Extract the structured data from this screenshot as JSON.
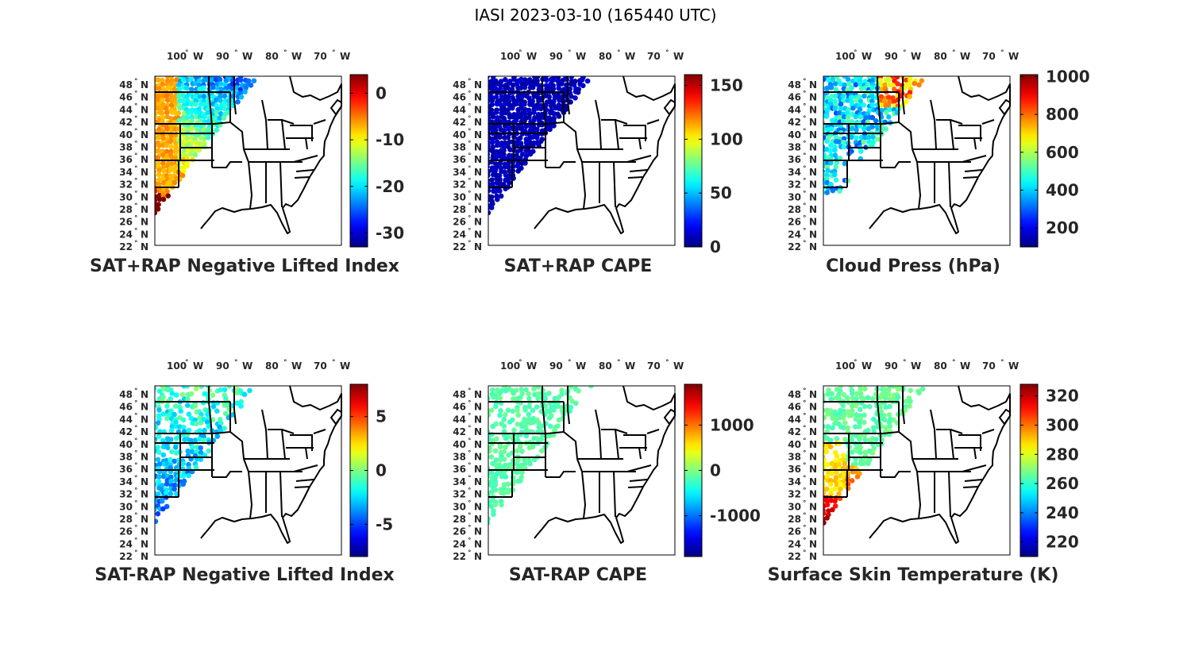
{
  "figure": {
    "title": "IASI 2023-03-10 (165440 UTC)"
  },
  "lon_ticks": [
    "100",
    "90",
    "80",
    "70"
  ],
  "lon_suffix": "W",
  "lat_ticks": [
    "48",
    "46",
    "44",
    "42",
    "40",
    "38",
    "36",
    "34",
    "32",
    "30",
    "28",
    "26",
    "24",
    "22"
  ],
  "lat_suffix": "N",
  "degree_symbol": "°",
  "chart_data": [
    {
      "type": "map",
      "title": "SAT+RAP Negative Lifted Index",
      "colormap": "jet",
      "clim": [
        -33,
        4
      ],
      "colorbar_ticks": [
        0,
        -10,
        -20,
        -30
      ],
      "colorbar_labels": [
        "0",
        "-10",
        "-20",
        "-30"
      ],
      "coverage": "full-swath",
      "field": "lifted-index",
      "lon_range": [
        -107,
        -68
      ],
      "lat_range": [
        22,
        49
      ]
    },
    {
      "type": "map",
      "title": "SAT+RAP CAPE",
      "colormap": "jet",
      "clim": [
        0,
        160
      ],
      "colorbar_ticks": [
        150,
        100,
        50,
        0
      ],
      "colorbar_labels": [
        "150",
        "100",
        "50",
        "0"
      ],
      "coverage": "full-swath",
      "field": "cape",
      "lon_range": [
        -107,
        -68
      ],
      "lat_range": [
        22,
        49
      ]
    },
    {
      "type": "map",
      "title": "Cloud Press (hPa)",
      "colormap": "jet",
      "clim": [
        100,
        1010
      ],
      "colorbar_ticks": [
        1000,
        800,
        600,
        400,
        200
      ],
      "colorbar_labels": [
        "1000",
        "800",
        "600",
        "400",
        "200"
      ],
      "coverage": "cloudy",
      "field": "cloud-pressure",
      "lon_range": [
        -107,
        -68
      ],
      "lat_range": [
        22,
        49
      ]
    },
    {
      "type": "map",
      "title": "SAT-RAP Negative Lifted Index",
      "colormap": "jet",
      "clim": [
        -8,
        8
      ],
      "colorbar_ticks": [
        5,
        0,
        -5
      ],
      "colorbar_labels": [
        "5",
        "0",
        "-5"
      ],
      "coverage": "clear",
      "field": "li-diff",
      "lon_range": [
        -107,
        -68
      ],
      "lat_range": [
        22,
        49
      ]
    },
    {
      "type": "map",
      "title": "SAT-RAP CAPE",
      "colormap": "jet",
      "clim": [
        -1900,
        1900
      ],
      "colorbar_ticks": [
        1000,
        0,
        -1000
      ],
      "colorbar_labels": [
        "1000",
        "0",
        "-1000"
      ],
      "coverage": "clear",
      "field": "cape-diff",
      "lon_range": [
        -107,
        -68
      ],
      "lat_range": [
        22,
        49
      ]
    },
    {
      "type": "map",
      "title": "Surface Skin Temperature (K)",
      "colormap": "jet",
      "clim": [
        210,
        328
      ],
      "colorbar_ticks": [
        320,
        300,
        280,
        260,
        240,
        220
      ],
      "colorbar_labels": [
        "320",
        "300",
        "280",
        "260",
        "240",
        "220"
      ],
      "coverage": "clear",
      "field": "skin-temp",
      "lon_range": [
        -107,
        -68
      ],
      "lat_range": [
        22,
        49
      ]
    }
  ]
}
